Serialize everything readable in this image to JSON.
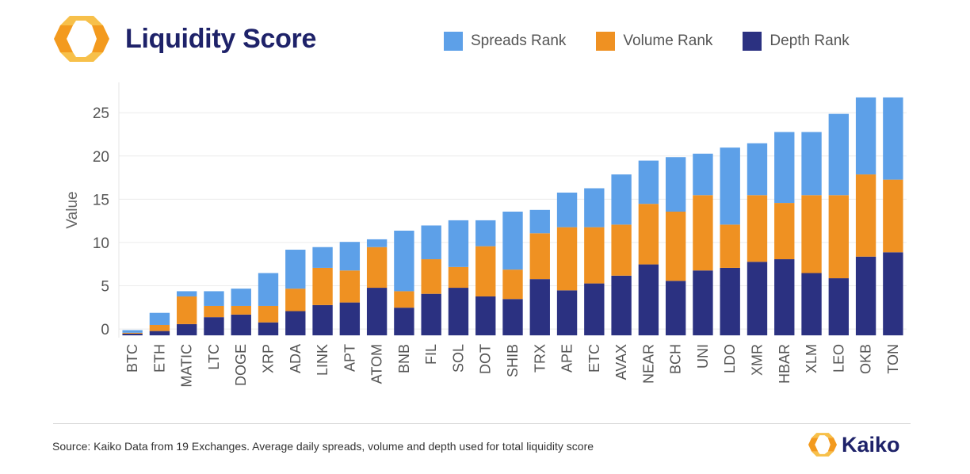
{
  "header": {
    "title": "Liquidity Score"
  },
  "brand": {
    "name": "Kaiko",
    "colors": {
      "orange": "#f39a1e",
      "orange_light": "#f7c04a",
      "navy": "#1e2269"
    }
  },
  "footer": {
    "source": "Source: Kaiko Data from 19 Exchanges. Average daily spreads, volume and depth used for total liquidity score"
  },
  "chart_data": {
    "type": "bar",
    "stacked": true,
    "title": "Liquidity Score",
    "xlabel": "",
    "ylabel": "Value",
    "ylim": [
      -1,
      28.5
    ],
    "yticks": [
      0,
      5,
      10,
      15,
      20,
      25
    ],
    "grid": true,
    "legend_position": "top-right",
    "categories": [
      "BTC",
      "ETH",
      "MATIC",
      "LTC",
      "DOGE",
      "XRP",
      "ADA",
      "LINK",
      "APT",
      "ATOM",
      "BNB",
      "FIL",
      "SOL",
      "DOT",
      "SHIB",
      "TRX",
      "APE",
      "ETC",
      "AVAX",
      "NEAR",
      "BCH",
      "UNI",
      "LDO",
      "XMR",
      "HBAR",
      "XLM",
      "LEO",
      "OKB",
      "TON"
    ],
    "series": [
      {
        "name": "Depth Rank",
        "color": "#2b3181",
        "values": [
          0.2,
          0.5,
          1.3,
          2.1,
          2.4,
          1.5,
          2.8,
          3.5,
          3.8,
          5.5,
          3.2,
          4.8,
          5.5,
          4.5,
          4.2,
          6.5,
          5.2,
          6.0,
          6.9,
          8.2,
          6.3,
          7.5,
          7.8,
          8.5,
          8.8,
          7.2,
          6.6,
          9.1,
          9.6
        ]
      },
      {
        "name": "Volume Rank",
        "color": "#ef9122",
        "values": [
          0.1,
          0.7,
          3.2,
          1.3,
          1.0,
          1.9,
          2.6,
          4.3,
          3.7,
          4.7,
          1.9,
          4.0,
          2.4,
          5.8,
          3.4,
          5.3,
          7.3,
          6.5,
          5.9,
          7.0,
          8.0,
          8.7,
          5.0,
          7.7,
          6.5,
          9.0,
          9.6,
          9.5,
          8.4
        ]
      },
      {
        "name": "Spreads Rank",
        "color": "#5da0e8",
        "values": [
          0.3,
          1.4,
          0.6,
          1.7,
          2.0,
          3.8,
          4.5,
          2.4,
          3.3,
          0.9,
          7.0,
          3.9,
          5.4,
          3.0,
          6.7,
          2.7,
          4.0,
          4.5,
          5.8,
          5.0,
          6.3,
          4.8,
          8.9,
          6.0,
          8.2,
          7.3,
          9.4,
          8.9,
          9.5
        ]
      }
    ]
  }
}
